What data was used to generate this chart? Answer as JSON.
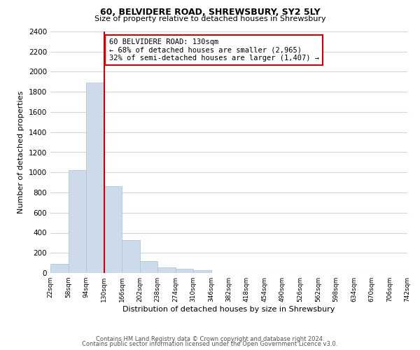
{
  "title": "60, BELVIDERE ROAD, SHREWSBURY, SY2 5LY",
  "subtitle": "Size of property relative to detached houses in Shrewsbury",
  "xlabel": "Distribution of detached houses by size in Shrewsbury",
  "ylabel": "Number of detached properties",
  "bar_color": "#ccdaea",
  "bar_edge_color": "#b0c8dc",
  "vline_x": 130,
  "vline_color": "#cc0000",
  "annotation_title": "60 BELVIDERE ROAD: 130sqm",
  "annotation_line1": "← 68% of detached houses are smaller (2,965)",
  "annotation_line2": "32% of semi-detached houses are larger (1,407) →",
  "bin_edges": [
    22,
    58,
    94,
    130,
    166,
    202,
    238,
    274,
    310,
    346,
    382,
    418,
    454,
    490,
    526,
    562,
    598,
    634,
    670,
    706,
    742
  ],
  "bar_heights": [
    90,
    1020,
    1890,
    860,
    325,
    120,
    55,
    45,
    25,
    0,
    0,
    0,
    0,
    0,
    0,
    0,
    0,
    0,
    0,
    0
  ],
  "ylim": [
    0,
    2400
  ],
  "yticks": [
    0,
    200,
    400,
    600,
    800,
    1000,
    1200,
    1400,
    1600,
    1800,
    2000,
    2200,
    2400
  ],
  "xtick_labels": [
    "22sqm",
    "58sqm",
    "94sqm",
    "130sqm",
    "166sqm",
    "202sqm",
    "238sqm",
    "274sqm",
    "310sqm",
    "346sqm",
    "382sqm",
    "418sqm",
    "454sqm",
    "490sqm",
    "526sqm",
    "562sqm",
    "598sqm",
    "634sqm",
    "670sqm",
    "706sqm",
    "742sqm"
  ],
  "footer1": "Contains HM Land Registry data © Crown copyright and database right 2024.",
  "footer2": "Contains public sector information licensed under the Open Government Licence v3.0.",
  "background_color": "#ffffff",
  "grid_color": "#ccd8e4"
}
